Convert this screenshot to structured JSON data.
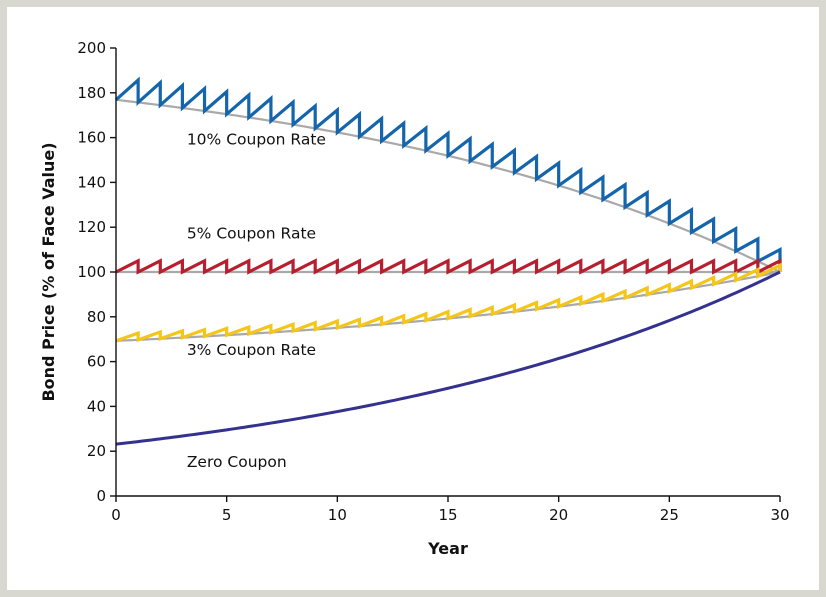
{
  "chart_data": {
    "type": "line",
    "title": "",
    "xlabel": "Year",
    "ylabel": "Bond Price (% of Face Value)",
    "xlim": [
      0,
      30
    ],
    "ylim": [
      0,
      200
    ],
    "x_ticks": [
      0,
      5,
      10,
      15,
      20,
      25,
      30
    ],
    "y_ticks": [
      0,
      20,
      40,
      60,
      80,
      100,
      120,
      140,
      160,
      180,
      200
    ],
    "grid": false,
    "legend": "none",
    "coupon_payment_years": 1,
    "yield_to_maturity": 0.05,
    "series": [
      {
        "name": "10% Coupon Rate",
        "coupon_rate": 0.1,
        "color": "#1565ad",
        "envelope_color": "#a9a9a9",
        "label_at": [
          3.2,
          157
        ]
      },
      {
        "name": "5% Coupon Rate",
        "coupon_rate": 0.05,
        "color": "#b81f2e",
        "envelope_color": "#a9a9a9",
        "label_at": [
          3.2,
          115
        ]
      },
      {
        "name": "3% Coupon Rate",
        "coupon_rate": 0.03,
        "color": "#f5c518",
        "envelope_color": "#a9a9a9",
        "label_at": [
          3.2,
          63
        ]
      },
      {
        "name": "Zero Coupon",
        "coupon_rate": 0,
        "color": "#35318f",
        "envelope_color": "#35318f",
        "label_at": [
          3.2,
          13
        ]
      }
    ]
  }
}
